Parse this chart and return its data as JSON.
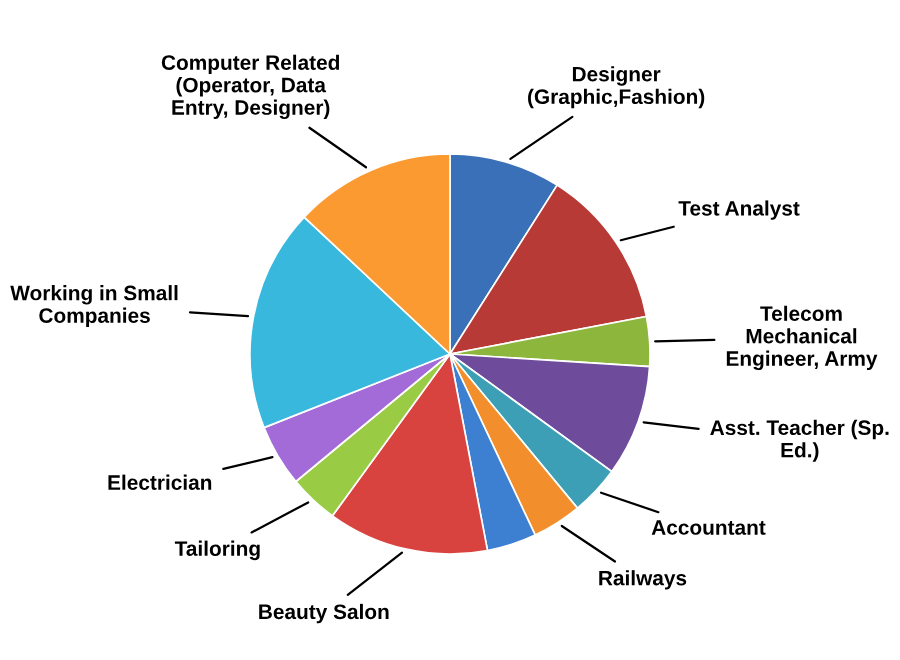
{
  "chart_data": {
    "type": "pie",
    "categories": [
      "Designer\n(Graphic,Fashion)",
      "Test Analyst",
      "Telecom\nMechanical\nEngineer, Army",
      "Asst. Teacher (Sp.\nEd.)",
      "Accountant",
      "Railways",
      null,
      "Beauty Salon",
      "Tailoring",
      "Electrician",
      "Working in Small\nCompanies",
      "Computer Related\n(Operator, Data\nEntry, Designer)"
    ],
    "values": [
      9,
      13,
      4,
      9,
      4,
      4,
      4,
      13,
      4,
      5,
      18,
      13
    ],
    "colors": [
      "#3a70b8",
      "#b83a36",
      "#8db63c",
      "#6f4c9b",
      "#3d9fb5",
      "#f28e2b",
      "#3d7fd0",
      "#d9433f",
      "#9acb44",
      "#a36bd8",
      "#38b8dc",
      "#fb9a30"
    ],
    "legend": false
  }
}
